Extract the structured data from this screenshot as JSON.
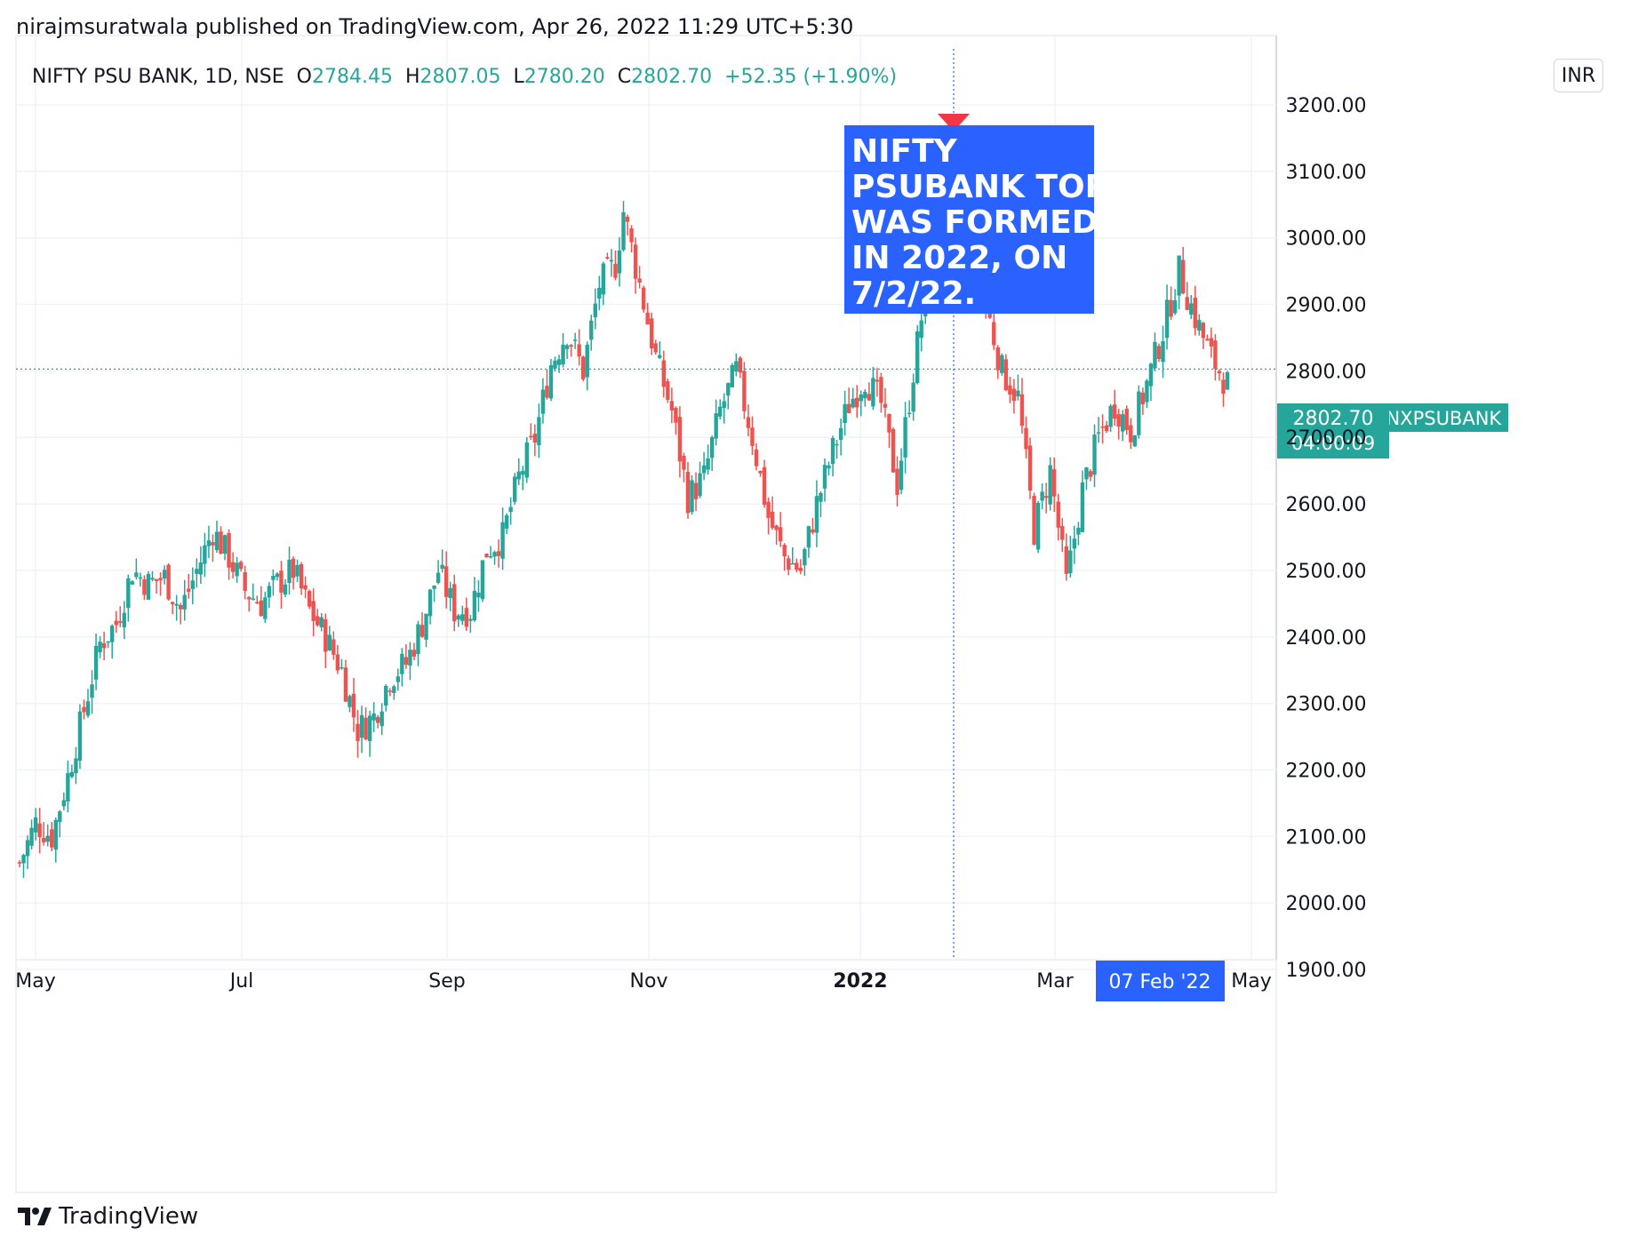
{
  "header": {
    "published_text": "nirajmsuratwala published on TradingView.com, Apr 26, 2022 11:29 UTC+5:30"
  },
  "legend": {
    "symbol": "NIFTY PSU BANK, 1D, NSE",
    "open_label": "O",
    "open": "2784.45",
    "high_label": "H",
    "high": "2807.05",
    "low_label": "L",
    "low": "2780.20",
    "close_label": "C",
    "close": "2802.70",
    "change": "+52.35 (+1.90%)"
  },
  "currency": "INR",
  "annotation": {
    "text_lines": [
      "NIFTY",
      "PSUBANK TOP",
      "WAS FORMED",
      "IN 2022, ON",
      "7/2/22."
    ],
    "bg_color": "#2962ff"
  },
  "price_label": {
    "symbol": "CNXPSUBANK",
    "price": "2802.70",
    "countdown": "04:00:09",
    "color": "#26a69a"
  },
  "crosshair": {
    "date_label": "07 Feb '22",
    "label_color": "#2962ff"
  },
  "footer": {
    "brand": "TradingView"
  },
  "colors": {
    "up": "#26a69a",
    "down": "#ef5350",
    "grid": "#f0f3fa",
    "marker": "#f23645"
  },
  "chart_data": {
    "type": "candlestick",
    "x_tick_labels": [
      "May",
      "Jul",
      "Sep",
      "Nov",
      "2022",
      "Mar",
      "May"
    ],
    "y_tick_labels": [
      "3200.00",
      "3100.00",
      "3000.00",
      "2900.00",
      "2800.00",
      "2700.00",
      "2600.00",
      "2500.00",
      "2400.00",
      "2300.00",
      "2200.00",
      "2100.00",
      "2000.00",
      "1900.00"
    ],
    "ylim": [
      1900,
      3200
    ],
    "current_price": 2802.7,
    "top_date": "2022-02-07",
    "top_high": 3135,
    "close_path": [
      [
        0,
        2060
      ],
      [
        4,
        2120
      ],
      [
        8,
        2100
      ],
      [
        12,
        2190
      ],
      [
        16,
        2290
      ],
      [
        20,
        2390
      ],
      [
        24,
        2420
      ],
      [
        28,
        2500
      ],
      [
        32,
        2480
      ],
      [
        36,
        2490
      ],
      [
        40,
        2440
      ],
      [
        44,
        2500
      ],
      [
        48,
        2560
      ],
      [
        52,
        2520
      ],
      [
        56,
        2470
      ],
      [
        60,
        2450
      ],
      [
        64,
        2480
      ],
      [
        68,
        2500
      ],
      [
        72,
        2440
      ],
      [
        76,
        2400
      ],
      [
        80,
        2350
      ],
      [
        84,
        2260
      ],
      [
        88,
        2280
      ],
      [
        92,
        2340
      ],
      [
        96,
        2360
      ],
      [
        100,
        2420
      ],
      [
        104,
        2500
      ],
      [
        108,
        2440
      ],
      [
        112,
        2440
      ],
      [
        116,
        2530
      ],
      [
        120,
        2550
      ],
      [
        124,
        2640
      ],
      [
        128,
        2700
      ],
      [
        132,
        2810
      ],
      [
        136,
        2860
      ],
      [
        140,
        2800
      ],
      [
        144,
        2930
      ],
      [
        148,
        2960
      ],
      [
        150,
        3040
      ],
      [
        154,
        2930
      ],
      [
        158,
        2820
      ],
      [
        162,
        2740
      ],
      [
        166,
        2610
      ],
      [
        170,
        2640
      ],
      [
        174,
        2740
      ],
      [
        178,
        2800
      ],
      [
        182,
        2700
      ],
      [
        186,
        2580
      ],
      [
        190,
        2520
      ],
      [
        194,
        2500
      ],
      [
        198,
        2600
      ],
      [
        202,
        2680
      ],
      [
        206,
        2750
      ],
      [
        210,
        2790
      ],
      [
        214,
        2750
      ],
      [
        218,
        2630
      ],
      [
        222,
        2800
      ],
      [
        226,
        2960
      ],
      [
        230,
        3050
      ],
      [
        232,
        3120
      ],
      [
        236,
        3020
      ],
      [
        240,
        2900
      ],
      [
        244,
        2800
      ],
      [
        248,
        2760
      ],
      [
        252,
        2560
      ],
      [
        256,
        2650
      ],
      [
        260,
        2480
      ],
      [
        264,
        2620
      ],
      [
        268,
        2700
      ],
      [
        272,
        2750
      ],
      [
        276,
        2710
      ],
      [
        280,
        2780
      ],
      [
        284,
        2860
      ],
      [
        288,
        2950
      ],
      [
        292,
        2880
      ],
      [
        296,
        2820
      ],
      [
        300,
        2780
      ]
    ]
  }
}
